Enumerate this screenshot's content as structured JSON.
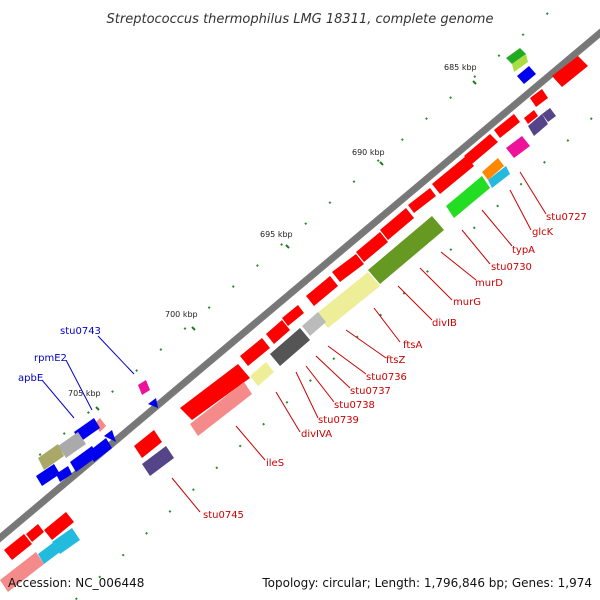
{
  "title": "Streptococcus thermophilus LMG 18311, complete genome",
  "footer": {
    "accession": "Accession: NC_006448",
    "summary": "Topology: circular; Length: 1,796,846 bp; Genes: 1,974"
  },
  "colors": {
    "backbone": "#8a8a8a",
    "forward_gene": "#ff0000",
    "reverse_gene": "#f58a8a",
    "blue_gene": "#0000ee",
    "tick": "#1f7a1f",
    "label_red": "#cc0000",
    "label_blue": "#0000cc"
  },
  "ticks": [
    {
      "label": "685 kbp"
    },
    {
      "label": "690 kbp"
    },
    {
      "label": "695 kbp"
    },
    {
      "label": "700 kbp"
    },
    {
      "label": "705 kbp"
    }
  ],
  "labels": {
    "red": [
      {
        "text": "stu0727"
      },
      {
        "text": "glcK"
      },
      {
        "text": "typA"
      },
      {
        "text": "stu0730"
      },
      {
        "text": "murD"
      },
      {
        "text": "murG"
      },
      {
        "text": "divIB"
      },
      {
        "text": "ftsA"
      },
      {
        "text": "ftsZ"
      },
      {
        "text": "stu0736"
      },
      {
        "text": "stu0737"
      },
      {
        "text": "stu0738"
      },
      {
        "text": "stu0739"
      },
      {
        "text": "divIVA"
      },
      {
        "text": "ileS"
      },
      {
        "text": "stu0745"
      }
    ],
    "blue": [
      {
        "text": "stu0743"
      },
      {
        "text": "rpmE2"
      },
      {
        "text": "apbE"
      }
    ]
  }
}
